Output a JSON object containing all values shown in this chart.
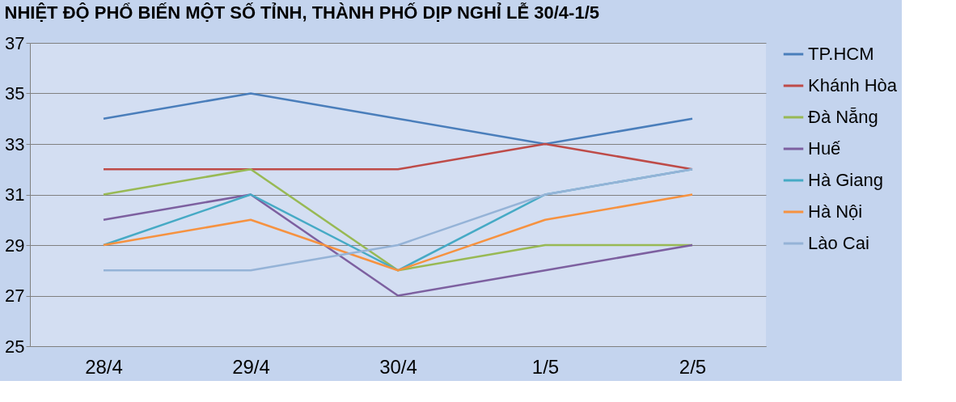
{
  "chart_data": {
    "type": "line",
    "title": "NHIỆT ĐỘ PHỔ BIẾN MỘT SỐ TỈNH, THÀNH PHỐ DỊP NGHỈ LỄ 30/4-1/5",
    "categories": [
      "28/4",
      "29/4",
      "30/4",
      "1/5",
      "2/5"
    ],
    "ylim": [
      25,
      37
    ],
    "yticks": [
      25,
      27,
      29,
      31,
      33,
      35,
      37
    ],
    "grid": "y",
    "legend": "right",
    "marker": "none",
    "line_style": "solid",
    "series": [
      {
        "name": "TP.HCM",
        "color": "#4a7ebb",
        "values": [
          34,
          35,
          34,
          33,
          34
        ]
      },
      {
        "name": "Khánh Hòa",
        "color": "#be4b48",
        "values": [
          32,
          32,
          32,
          33,
          32
        ]
      },
      {
        "name": "Đà Nẵng",
        "color": "#98b954",
        "values": [
          31,
          32,
          28,
          29,
          29
        ]
      },
      {
        "name": "Huế",
        "color": "#7d60a0",
        "values": [
          30,
          31,
          27,
          28,
          29
        ]
      },
      {
        "name": "Hà Giang",
        "color": "#46aac5",
        "values": [
          29,
          31,
          28,
          31,
          32
        ]
      },
      {
        "name": "Hà Nội",
        "color": "#f69240",
        "values": [
          29,
          30,
          28,
          30,
          31
        ]
      },
      {
        "name": "Lào Cai",
        "color": "#95b3d7",
        "values": [
          28,
          28,
          29,
          31,
          32
        ]
      }
    ]
  }
}
